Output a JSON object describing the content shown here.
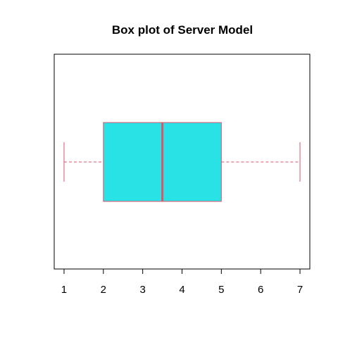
{
  "chart_data": {
    "type": "boxplot",
    "orientation": "horizontal",
    "title": "Box plot of Server Model",
    "xlabel": "",
    "ylabel": "",
    "xlim": [
      0.75,
      7.25
    ],
    "x_ticks": [
      1,
      2,
      3,
      4,
      5,
      6,
      7
    ],
    "x_tick_labels": [
      "1",
      "2",
      "3",
      "4",
      "5",
      "6",
      "7"
    ],
    "grid": false,
    "legend": "none",
    "box": {
      "min": 1,
      "q1": 2,
      "median": 3.5,
      "q3": 5,
      "max": 7
    },
    "colors": {
      "box_fill": "#28E2E5",
      "box_border": "#DF536B",
      "median": "#DF536B",
      "whisker": "#DF536B",
      "frame": "#000000"
    }
  }
}
